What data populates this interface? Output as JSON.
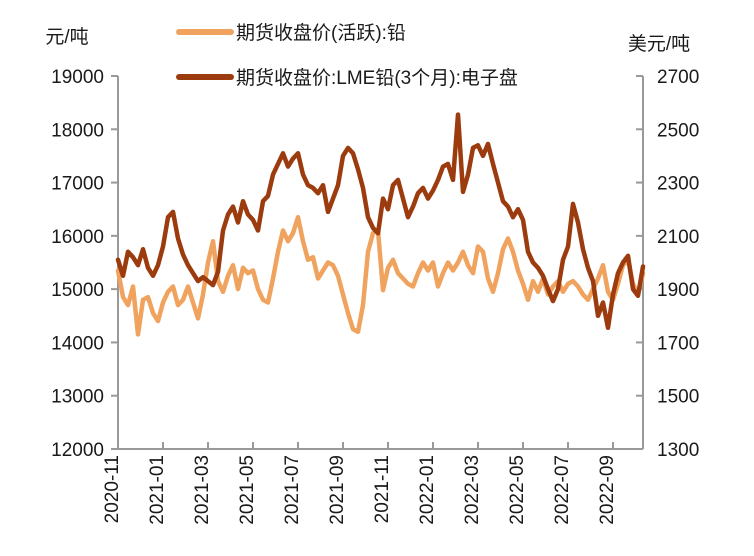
{
  "chart_data": {
    "type": "line",
    "title": "",
    "y_left": {
      "label": "元/吨",
      "range": [
        12000,
        19000
      ],
      "tick_labels": [
        "19000",
        "18000",
        "17000",
        "16000",
        "15000",
        "14000",
        "13000",
        "12000"
      ]
    },
    "y_right": {
      "label": "美元/吨",
      "range": [
        1300,
        2700
      ],
      "tick_labels": [
        "2700",
        "2500",
        "2300",
        "2100",
        "1900",
        "1700",
        "1500",
        "1300"
      ]
    },
    "x_axis": {
      "tick_labels": [
        "2020-11",
        "2021-01",
        "2021-03",
        "2021-05",
        "2021-07",
        "2021-09",
        "2021-11",
        "2022-01",
        "2022-03",
        "2022-05",
        "2022-07",
        "2022-09"
      ],
      "start": "2020-11",
      "end": "2022-10",
      "sampling": "each series holds 106 evenly spaced (~weekly) samples from 2020-11 to 2022-10"
    },
    "legend_position": "top",
    "grid": false,
    "colors": {
      "shfe": "#F0A35E",
      "lme": "#9C3B0E",
      "axis": "#999999",
      "text": "#1a1a1a"
    },
    "series": [
      {
        "name": "期货收盘价(活跃):铅",
        "axis": "left",
        "unit": "元/吨",
        "color": "#F0A35E",
        "values": [
          15350,
          14850,
          14700,
          15050,
          14150,
          14800,
          14850,
          14550,
          14400,
          14750,
          14950,
          15050,
          14700,
          14800,
          15050,
          14750,
          14450,
          14900,
          15500,
          15900,
          15150,
          14950,
          15250,
          15450,
          15000,
          15400,
          15300,
          15350,
          15000,
          14800,
          14750,
          15200,
          15700,
          16100,
          15900,
          16050,
          16350,
          15900,
          15550,
          15600,
          15200,
          15350,
          15500,
          15450,
          15250,
          14900,
          14550,
          14250,
          14200,
          14700,
          15700,
          16050,
          16100,
          14980,
          15400,
          15550,
          15300,
          15200,
          15100,
          15050,
          15300,
          15500,
          15350,
          15500,
          15050,
          15300,
          15500,
          15350,
          15500,
          15700,
          15450,
          15300,
          15800,
          15700,
          15200,
          14950,
          15300,
          15750,
          15950,
          15700,
          15350,
          15100,
          14800,
          15150,
          14950,
          15200,
          14900,
          15050,
          15150,
          14950,
          15100,
          15150,
          15050,
          14900,
          14800,
          15000,
          15200,
          15450,
          14950,
          14800,
          15100,
          15450,
          15550,
          15100,
          14900,
          15300
        ]
      },
      {
        "name": "期货收盘价:LME铅(3个月):电子盘",
        "axis": "right",
        "unit": "美元/吨",
        "color": "#9C3B0E",
        "values": [
          2010,
          1950,
          2040,
          2020,
          1990,
          2050,
          1980,
          1950,
          1990,
          2060,
          2170,
          2190,
          2090,
          2030,
          1990,
          1960,
          1930,
          1945,
          1930,
          1915,
          1965,
          2120,
          2180,
          2210,
          2150,
          2230,
          2180,
          2160,
          2120,
          2230,
          2250,
          2330,
          2370,
          2410,
          2360,
          2390,
          2410,
          2330,
          2290,
          2280,
          2260,
          2290,
          2190,
          2240,
          2290,
          2400,
          2430,
          2410,
          2350,
          2280,
          2170,
          2130,
          2110,
          2240,
          2200,
          2290,
          2310,
          2240,
          2170,
          2210,
          2260,
          2280,
          2240,
          2270,
          2310,
          2360,
          2370,
          2310,
          2555,
          2265,
          2330,
          2430,
          2440,
          2400,
          2445,
          2370,
          2300,
          2230,
          2210,
          2170,
          2200,
          2160,
          2040,
          2000,
          1980,
          1950,
          1900,
          1855,
          1900,
          2010,
          2060,
          2220,
          2150,
          2050,
          1980,
          1930,
          1800,
          1850,
          1755,
          1880,
          1960,
          2000,
          2025,
          1900,
          1875,
          1985
        ]
      }
    ]
  }
}
